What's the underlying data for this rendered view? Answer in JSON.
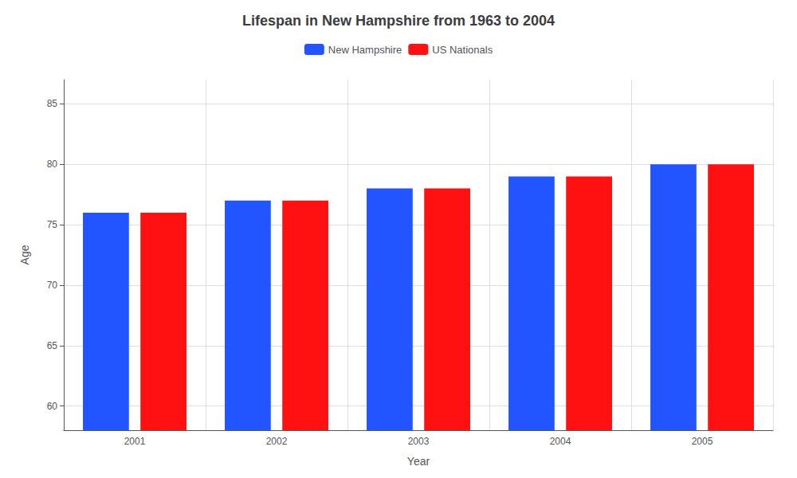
{
  "chart_data": {
    "type": "bar",
    "title": "Lifespan in New Hampshire from 1963 to 2004",
    "xlabel": "Year",
    "ylabel": "Age",
    "categories": [
      "2001",
      "2002",
      "2003",
      "2004",
      "2005"
    ],
    "series": [
      {
        "name": "New Hampshire",
        "color": "#2255ff",
        "values": [
          76,
          77,
          78,
          79,
          80
        ]
      },
      {
        "name": "US Nationals",
        "color": "#ff1111",
        "values": [
          76,
          77,
          78,
          79,
          80
        ]
      }
    ],
    "ylim": [
      58,
      87
    ],
    "yticks": [
      60,
      65,
      70,
      75,
      80,
      85
    ],
    "grid": true,
    "legend": "top"
  }
}
